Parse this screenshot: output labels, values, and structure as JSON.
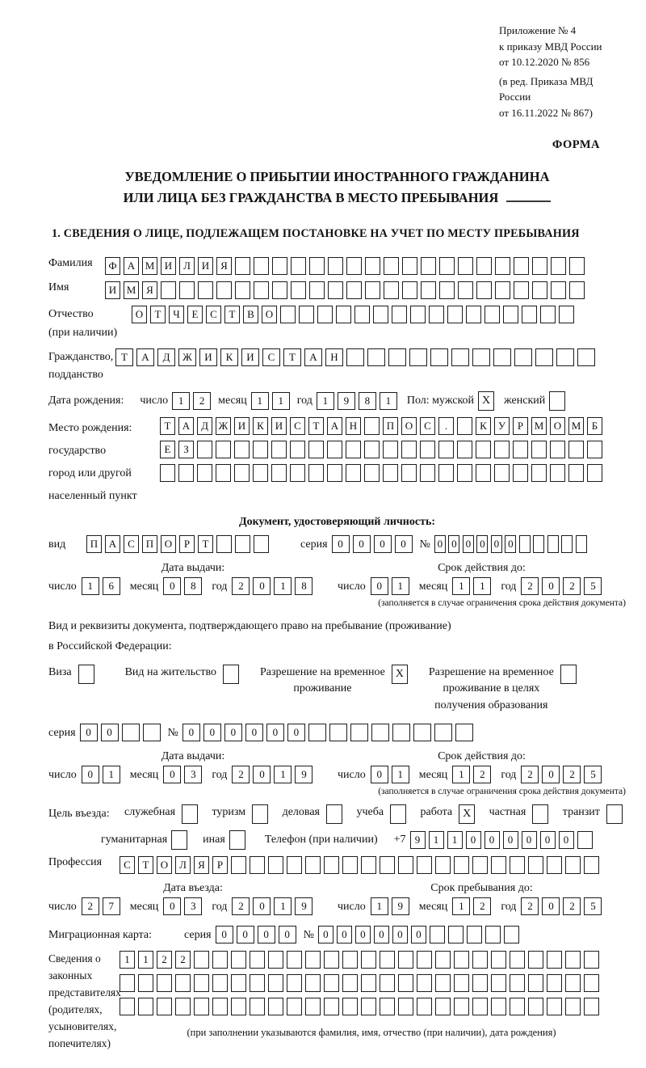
{
  "header": {
    "appendix_lines": [
      "Приложение № 4",
      "к приказу МВД России",
      "от 10.12.2020 № 856"
    ],
    "revision_lines": [
      "(в ред. Приказа МВД России",
      "от 16.11.2022 № 867)"
    ],
    "form_label": "ФОРМА"
  },
  "title": {
    "line1": "УВЕДОМЛЕНИЕ О ПРИБЫТИИ ИНОСТРАННОГО ГРАЖДАНИНА",
    "line2": "ИЛИ ЛИЦА БЕЗ ГРАЖДАНСТВА В МЕСТО ПРЕБЫВАНИЯ"
  },
  "section1_heading": "1. СВЕДЕНИЯ О ЛИЦЕ, ПОДЛЕЖАЩЕМ ПОСТАНОВКЕ НА УЧЕТ ПО МЕСТУ ПРЕБЫВАНИЯ",
  "labels": {
    "surname": "Фамилия",
    "name": "Имя",
    "patronymic_1": "Отчество",
    "patronymic_2": "(при наличии)",
    "citizenship_1": "Гражданство,",
    "citizenship_2": "подданство",
    "birth_date": "Дата рождения:",
    "day": "число",
    "month": "месяц",
    "year": "год",
    "sex": "Пол:",
    "male": "мужской",
    "female": "женский",
    "birth_place_1": "Место рождения:",
    "birth_place_2": "государство",
    "birth_place_3": "город или другой",
    "birth_place_4": "населенный пункт",
    "identity_doc_heading": "Документ, удостоверяющий личность:",
    "kind": "вид",
    "series": "серия",
    "number_sign": "№",
    "issue_date": "Дата выдачи:",
    "valid_until": "Срок действия до:",
    "valid_note": "(заполняется в случае ограничения срока действия документа)",
    "residence_doc_line1": "Вид и реквизиты документа, подтверждающего право на пребывание (проживание)",
    "residence_doc_line2": "в Российской Федерации:",
    "visa": "Виза",
    "residence_permit": "Вид на жительство",
    "temp_residence_1": "Разрешение на временное",
    "temp_residence_2": "проживание",
    "temp_residence_edu_1": "Разрешение на временное",
    "temp_residence_edu_2": "проживание в целях",
    "temp_residence_edu_3": "получения образования",
    "visit_purpose": "Цель въезда:",
    "purpose_official": "служебная",
    "purpose_tourism": "туризм",
    "purpose_business": "деловая",
    "purpose_study": "учеба",
    "purpose_work": "работа",
    "purpose_private": "частная",
    "purpose_transit": "транзит",
    "purpose_humanitarian": "гуманитарная",
    "purpose_other": "иная",
    "phone": "Телефон (при наличии)",
    "phone_prefix": "+7",
    "profession": "Профессия",
    "entry_date": "Дата въезда:",
    "stay_until": "Срок пребывания до:",
    "migration_card": "Миграционная карта:",
    "legal_rep_1": "Сведения о",
    "legal_rep_2": "законных",
    "legal_rep_3": "представителях",
    "legal_rep_4": "(родителях,",
    "legal_rep_5": "усыновителях,",
    "legal_rep_6": "попечителях)",
    "legal_rep_note": "(при заполнении указываются фамилия, имя, отчество (при наличии), дата рождения)"
  },
  "fields": {
    "surname": {
      "value": "ФАМИЛИЯ",
      "length": 26
    },
    "name": {
      "value": "ИМЯ",
      "length": 26
    },
    "patronymic": {
      "value": "ОТЧЕСТВО",
      "length": 24
    },
    "citizenship": {
      "value": "ТАДЖИКИСТАН",
      "length": 23
    },
    "birth_day": {
      "value": "12",
      "length": 2
    },
    "birth_month": {
      "value": "11",
      "length": 2
    },
    "birth_year": {
      "value": "1981",
      "length": 4
    },
    "sex_male_box": {
      "value": "X",
      "length": 1
    },
    "sex_female_box": {
      "value": "",
      "length": 1
    },
    "birth_place_row1": {
      "value": "ТАДЖИКИСТАН ПОС. КУРМОМБ",
      "length": 24
    },
    "birth_place_row2": {
      "value": "ЕЗ",
      "length": 24
    },
    "birth_place_row3": {
      "value": "",
      "length": 24
    },
    "doc_kind": {
      "value": "ПАСПОРТ",
      "length": 10
    },
    "doc_series": {
      "value": "0000",
      "length": 4
    },
    "doc_number": {
      "value": "000000",
      "length": 11
    },
    "doc_issue_day": {
      "value": "16",
      "length": 2
    },
    "doc_issue_month": {
      "value": "08",
      "length": 2
    },
    "doc_issue_year": {
      "value": "2018",
      "length": 4
    },
    "doc_valid_day": {
      "value": "01",
      "length": 2
    },
    "doc_valid_month": {
      "value": "11",
      "length": 2
    },
    "doc_valid_year": {
      "value": "2025",
      "length": 4
    },
    "visa_box": {
      "value": "",
      "length": 1
    },
    "residence_permit_box": {
      "value": "",
      "length": 1
    },
    "temp_residence_box": {
      "value": "X",
      "length": 1
    },
    "temp_residence_edu_box": {
      "value": "",
      "length": 1
    },
    "res_series": {
      "value": "00",
      "length": 4
    },
    "res_number": {
      "value": "000000",
      "length": 14
    },
    "res_issue_day": {
      "value": "01",
      "length": 2
    },
    "res_issue_month": {
      "value": "03",
      "length": 2
    },
    "res_issue_year": {
      "value": "2019",
      "length": 4
    },
    "res_valid_day": {
      "value": "01",
      "length": 2
    },
    "res_valid_month": {
      "value": "12",
      "length": 2
    },
    "res_valid_year": {
      "value": "2025",
      "length": 4
    },
    "purpose_official_box": {
      "value": "",
      "length": 1
    },
    "purpose_tourism_box": {
      "value": "",
      "length": 1
    },
    "purpose_business_box": {
      "value": "",
      "length": 1
    },
    "purpose_study_box": {
      "value": "",
      "length": 1
    },
    "purpose_work_box": {
      "value": "X",
      "length": 1
    },
    "purpose_private_box": {
      "value": "",
      "length": 1
    },
    "purpose_transit_box": {
      "value": "",
      "length": 1
    },
    "purpose_humanitarian_box": {
      "value": "",
      "length": 1
    },
    "purpose_other_box": {
      "value": "",
      "length": 1
    },
    "phone_number": {
      "value": "911000000",
      "length": 10
    },
    "profession": {
      "value": "СТОЛЯР",
      "length": 26
    },
    "entry_day": {
      "value": "27",
      "length": 2
    },
    "entry_month": {
      "value": "03",
      "length": 2
    },
    "entry_year": {
      "value": "2019",
      "length": 4
    },
    "stay_day": {
      "value": "19",
      "length": 2
    },
    "stay_month": {
      "value": "12",
      "length": 2
    },
    "stay_year": {
      "value": "2025",
      "length": 4
    },
    "mig_series": {
      "value": "0000",
      "length": 4
    },
    "mig_number": {
      "value": "000000",
      "length": 11
    },
    "legal_rep_row1": {
      "value": "1122",
      "length": 26
    },
    "legal_rep_row2": {
      "value": "",
      "length": 26
    },
    "legal_rep_row3": {
      "value": "",
      "length": 26
    }
  }
}
